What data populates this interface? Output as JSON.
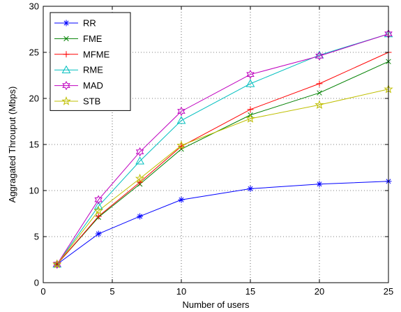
{
  "chart_data": {
    "type": "line",
    "xlabel": "Number of users",
    "ylabel": "Aggragated Throuput (Mbps)",
    "xlim": [
      0,
      25
    ],
    "ylim": [
      0,
      30
    ],
    "xticks": [
      0,
      5,
      10,
      15,
      20,
      25
    ],
    "yticks": [
      0,
      5,
      10,
      15,
      20,
      25,
      30
    ],
    "grid": true,
    "legend_position": "top-left",
    "x": [
      1,
      4,
      7,
      10,
      15,
      20,
      25
    ],
    "series": [
      {
        "name": "RR",
        "color": "#0000ff",
        "marker": "asterisk",
        "values": [
          2.0,
          5.3,
          7.2,
          9.0,
          10.2,
          10.7,
          11.0
        ]
      },
      {
        "name": "FME",
        "color": "#008000",
        "marker": "x",
        "values": [
          2.0,
          7.1,
          10.7,
          14.5,
          18.2,
          20.6,
          24.0
        ]
      },
      {
        "name": "MFME",
        "color": "#ff0000",
        "marker": "plus",
        "values": [
          2.0,
          7.2,
          10.9,
          14.8,
          18.8,
          21.6,
          25.0
        ]
      },
      {
        "name": "RME",
        "color": "#00bfbf",
        "marker": "triangle",
        "values": [
          2.0,
          8.3,
          13.2,
          17.6,
          21.6,
          24.7,
          27.0
        ]
      },
      {
        "name": "MAD",
        "color": "#bf00bf",
        "marker": "hexagram",
        "values": [
          2.0,
          9.0,
          14.2,
          18.6,
          22.6,
          24.6,
          27.0
        ]
      },
      {
        "name": "STB",
        "color": "#bfbf00",
        "marker": "pentagram",
        "values": [
          2.0,
          7.8,
          11.3,
          14.9,
          17.8,
          19.3,
          21.0
        ]
      }
    ]
  }
}
